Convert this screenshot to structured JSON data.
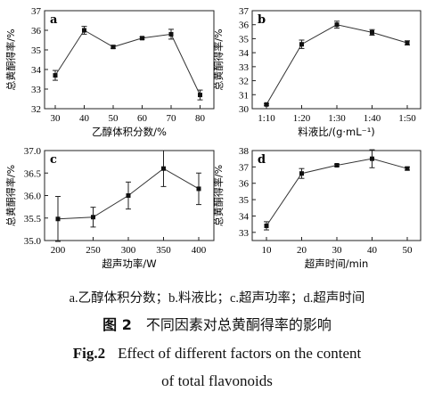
{
  "figure": {
    "caption_sub": "a.乙醇体积分数；b.料液比；c.超声功率；d.超声时间",
    "caption_cn_no": "图 2",
    "caption_cn": "不同因素对总黄酮得率的影响",
    "caption_en_no": "Fig.2",
    "caption_en_line1": "Effect of different factors on the content",
    "caption_en_line2": "of total flavonoids"
  },
  "chart_data": [
    {
      "panel": "a",
      "type": "line",
      "xlabel": "乙醇体积分数/%",
      "ylabel": "总黄酮得率/%",
      "categories": [
        "30",
        "40",
        "50",
        "60",
        "70",
        "80"
      ],
      "values": [
        33.7,
        36.0,
        35.15,
        35.6,
        35.8,
        32.7
      ],
      "errors": [
        0.25,
        0.2,
        0.07,
        0.06,
        0.25,
        0.25
      ],
      "ylim": [
        32,
        37
      ],
      "yticks": [
        "32",
        "33",
        "34",
        "35",
        "36",
        "37"
      ]
    },
    {
      "panel": "b",
      "type": "line",
      "xlabel": "料液比/(g·mL⁻¹)",
      "ylabel": "总黄酮得率/%",
      "categories": [
        "1:10",
        "1:20",
        "1:30",
        "1:40",
        "1:50"
      ],
      "values": [
        30.3,
        34.6,
        36.0,
        35.45,
        34.7
      ],
      "errors": [
        0.06,
        0.3,
        0.25,
        0.2,
        0.15
      ],
      "ylim": [
        30,
        37
      ],
      "yticks": [
        "30",
        "31",
        "32",
        "33",
        "34",
        "35",
        "36",
        "37"
      ]
    },
    {
      "panel": "c",
      "type": "line",
      "xlabel": "超声功率/W",
      "ylabel": "总黄酮得率/%",
      "categories": [
        "200",
        "250",
        "300",
        "350",
        "400"
      ],
      "values": [
        35.48,
        35.52,
        36.0,
        36.6,
        36.15
      ],
      "errors": [
        0.5,
        0.22,
        0.3,
        0.4,
        0.35
      ],
      "ylim": [
        35.0,
        37.0
      ],
      "yticks": [
        "35.0",
        "35.5",
        "36.0",
        "36.5",
        "37.0"
      ]
    },
    {
      "panel": "d",
      "type": "line",
      "xlabel": "超声时间/min",
      "ylabel": "总黄酮得率/%",
      "categories": [
        "10",
        "20",
        "30",
        "40",
        "50"
      ],
      "values": [
        33.4,
        36.6,
        37.1,
        37.5,
        36.9
      ],
      "errors": [
        0.25,
        0.3,
        0.07,
        0.55,
        0.1
      ],
      "ylim": [
        32.5,
        38
      ],
      "yticks": [
        "33",
        "34",
        "35",
        "36",
        "37",
        "38"
      ]
    }
  ]
}
